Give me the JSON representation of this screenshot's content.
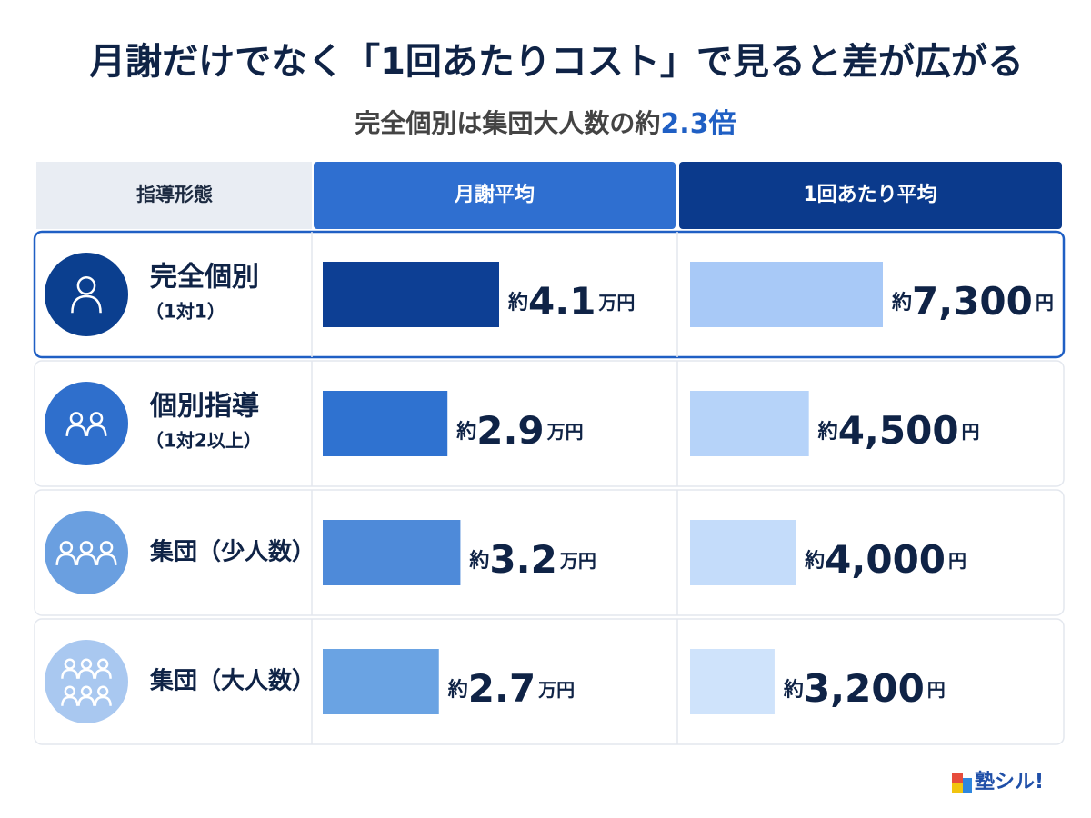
{
  "title": "月謝だけでなく「1回あたりコスト」で見ると差が広がる",
  "subtitle": {
    "text": "完全個別は集団大人数の約",
    "highlight": "2.3倍"
  },
  "table": {
    "headers": [
      "指導形態",
      "月謝平均",
      "1回あたり平均"
    ],
    "rows": [
      {
        "name": "完全個別",
        "detail": "（1対1）",
        "monthly": {
          "prefix": "約",
          "value": 4.1,
          "unit": "万円"
        },
        "per_lesson": {
          "prefix": "約",
          "value": 7300,
          "label": "7,300",
          "unit": "円"
        }
      },
      {
        "name": "個別指導",
        "detail": "（1対2以上）",
        "monthly": {
          "prefix": "約",
          "value": 2.9,
          "unit": "万円"
        },
        "per_lesson": {
          "prefix": "約",
          "value": 4500,
          "label": "4,500",
          "unit": "円"
        }
      },
      {
        "name": "集団（少人数）",
        "detail": null,
        "monthly": {
          "prefix": "約",
          "value": 3.2,
          "unit": "万円"
        },
        "per_lesson": {
          "prefix": "約",
          "value": 4000,
          "label": "4,000",
          "unit": "円"
        }
      },
      {
        "name": "集団（大人数）",
        "detail": null,
        "monthly": {
          "prefix": "約",
          "value": 2.7,
          "unit": "万円"
        },
        "per_lesson": {
          "prefix": "約",
          "value": 3200,
          "label": "3,200",
          "unit": "円"
        }
      }
    ]
  },
  "logo": "塾シル!"
}
